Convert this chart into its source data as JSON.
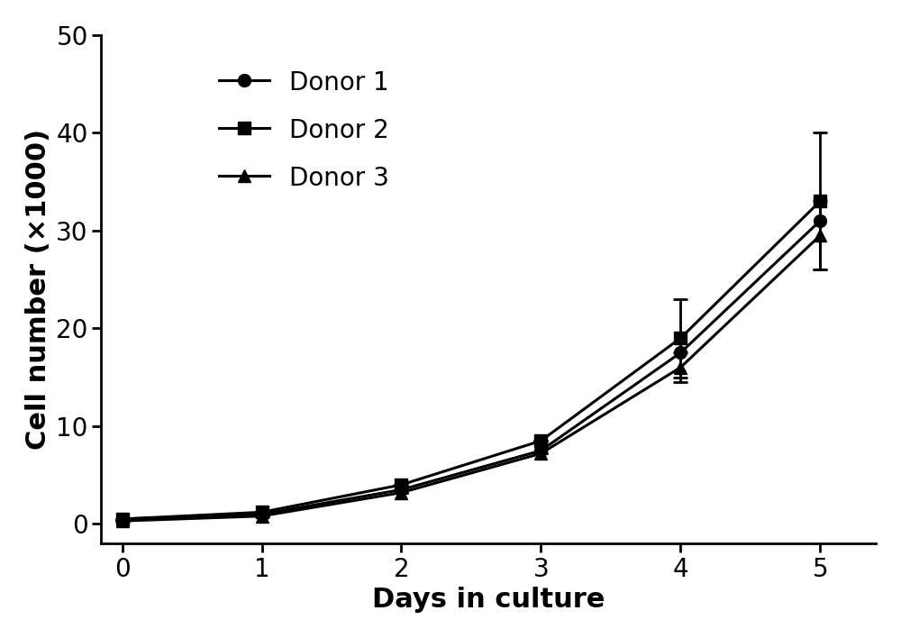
{
  "x": [
    0,
    1,
    2,
    3,
    4,
    5
  ],
  "donor1_y": [
    0.5,
    1.0,
    3.5,
    7.5,
    17.5,
    31.0
  ],
  "donor2_y": [
    0.5,
    1.2,
    4.0,
    8.5,
    19.0,
    33.0
  ],
  "donor3_y": [
    0.3,
    0.8,
    3.2,
    7.2,
    16.0,
    29.5
  ],
  "donor2_yerr": [
    0.0,
    0.0,
    0.0,
    0.0,
    4.0,
    7.0
  ],
  "donor3_yerr": [
    0.0,
    0.0,
    0.0,
    0.0,
    1.5,
    3.5
  ],
  "xlabel": "Days in culture",
  "ylabel": "Cell number (×1000)",
  "ylim": [
    -2,
    50
  ],
  "xlim": [
    -0.15,
    5.4
  ],
  "yticks": [
    0,
    10,
    20,
    30,
    40,
    50
  ],
  "xticks": [
    0,
    1,
    2,
    3,
    4,
    5
  ],
  "legend_labels": [
    "Donor 1",
    "Donor 2",
    "Donor 3"
  ],
  "line_color": "#000000",
  "marker_circle": "o",
  "marker_square": "s",
  "marker_triangle": "^",
  "markersize": 10,
  "linewidth": 2.2,
  "fontsize_label": 22,
  "fontsize_tick": 20,
  "fontsize_legend": 20,
  "capsize": 6,
  "capthick": 2,
  "elinewidth": 2,
  "background_color": "#ffffff"
}
